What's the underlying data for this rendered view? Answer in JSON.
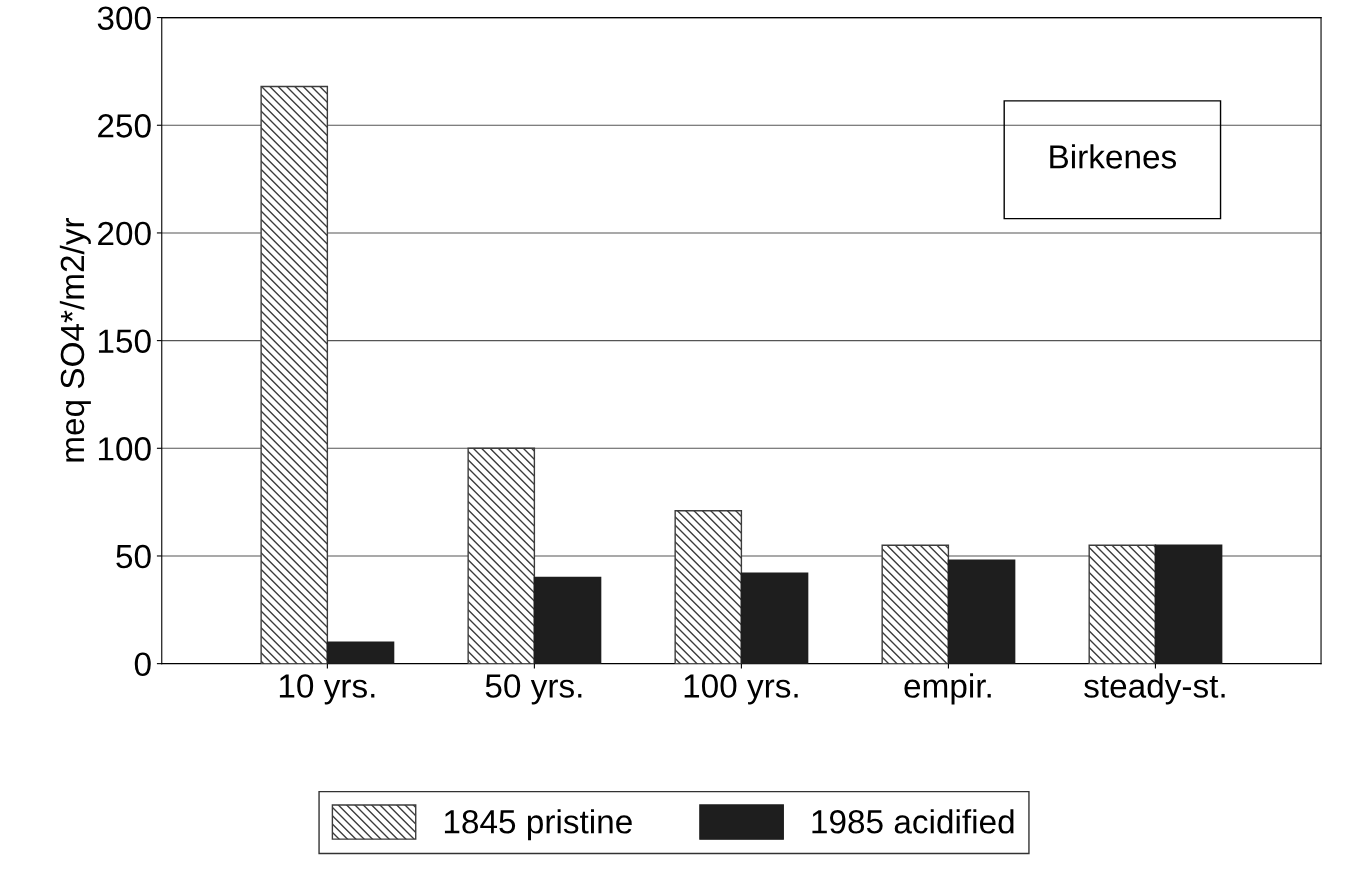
{
  "chart_data": {
    "type": "bar",
    "ylabel": "meq SO4*/m2/yr",
    "categories": [
      "10 yrs.",
      "50 yrs.",
      "100 yrs.",
      "empir.",
      "steady-st."
    ],
    "series": [
      {
        "name": "1845 pristine",
        "color": "#3c3c3c",
        "values": [
          268,
          100,
          71,
          55,
          55
        ]
      },
      {
        "name": "1985 acidified",
        "color": "#1e1e1e",
        "values": [
          10,
          40,
          42,
          48,
          55
        ]
      }
    ],
    "ylim": [
      0,
      300
    ],
    "yticks": [
      0,
      50,
      100,
      150,
      200,
      250,
      300
    ],
    "grid": "y",
    "legend": "bottom",
    "annotations": [
      "Birkenes"
    ]
  }
}
